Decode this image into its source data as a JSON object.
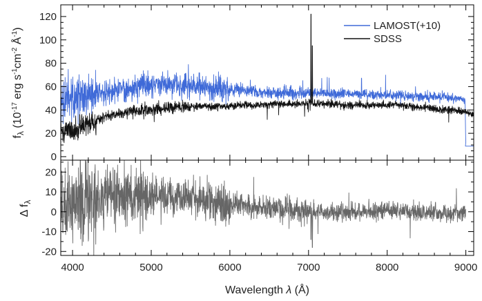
{
  "chart_data": [
    {
      "type": "line",
      "panel": "top",
      "xlabel": "",
      "ylabel": "f_λ (10⁻¹⁷ erg s⁻¹cm⁻² Å⁻¹)",
      "ylabel_parts": {
        "f": "f",
        "lambda": "λ",
        "rest": " (10",
        "e1": "-17",
        "erg": " erg s",
        "e2": "-1",
        "cm": "cm",
        "e3": "-2",
        "ang": " Å",
        "e4": "-1",
        "close": ")"
      },
      "xlim": [
        3850,
        9100
      ],
      "ylim": [
        -3,
        130
      ],
      "yticks": [
        0,
        20,
        40,
        60,
        80,
        100,
        120
      ],
      "legend_position": "top-right",
      "series": [
        {
          "name": "LAMOST(+10)",
          "color": "#3f6ad8",
          "x": [
            3850,
            3950,
            4050,
            4150,
            4250,
            4350,
            4500,
            4700,
            4900,
            5100,
            5300,
            5500,
            5700,
            5900,
            6100,
            6300,
            6500,
            6700,
            6900,
            7000,
            7100,
            7300,
            7500,
            7700,
            7900,
            8100,
            8300,
            8500,
            8700,
            8900,
            8990,
            9000,
            9100
          ],
          "y": [
            45,
            48,
            50,
            52,
            53,
            54,
            56,
            58,
            61,
            61,
            61,
            61,
            60,
            58,
            57,
            56,
            55,
            55,
            54,
            55,
            54,
            54,
            54,
            53,
            53,
            53,
            52,
            51,
            51,
            50,
            49,
            9,
            9
          ]
        },
        {
          "name": "SDSS",
          "color": "#111111",
          "x": [
            3850,
            3950,
            4050,
            4150,
            4250,
            4350,
            4500,
            4700,
            4900,
            5100,
            5300,
            5500,
            5700,
            5900,
            6100,
            6300,
            6500,
            6700,
            6900,
            7000,
            7100,
            7300,
            7500,
            7700,
            7900,
            8100,
            8300,
            8500,
            8700,
            8900,
            9000,
            9100
          ],
          "y": [
            20,
            22,
            24,
            27,
            30,
            33,
            36,
            38,
            40,
            41,
            42,
            43,
            43,
            43,
            44,
            44,
            45,
            45,
            45,
            46,
            45,
            45,
            44,
            44,
            44,
            45,
            43,
            42,
            40,
            39,
            38,
            36
          ]
        }
      ],
      "lines": {
        "halpha_x": 7032,
        "halpha_peak": 122,
        "nii_x": 7048,
        "nii_peak": 95
      }
    },
    {
      "type": "line",
      "panel": "bottom",
      "xlabel": "Wavelength λ (Å)",
      "xlabel_parts": {
        "pre": "Wavelength ",
        "lambda": "λ",
        "post": " (Å)"
      },
      "ylabel": "Δ f_λ",
      "ylabel_parts": {
        "delta": "Δ f",
        "lambda": "λ"
      },
      "xlim": [
        3850,
        9100
      ],
      "ylim": [
        -22,
        26
      ],
      "xticks": [
        4000,
        5000,
        6000,
        7000,
        8000,
        9000
      ],
      "yticks": [
        -20,
        -10,
        0,
        10,
        20
      ],
      "series": [
        {
          "name": "",
          "color": "#666666",
          "x": [
            3850,
            4100,
            4400,
            4800,
            5200,
            5600,
            6000,
            6400,
            6800,
            7200,
            7600,
            8000,
            8400,
            8800,
            9000
          ],
          "y": [
            5,
            6,
            7,
            8,
            8,
            6,
            4,
            2,
            1,
            0,
            0,
            1,
            0,
            -1,
            0
          ]
        }
      ]
    }
  ]
}
